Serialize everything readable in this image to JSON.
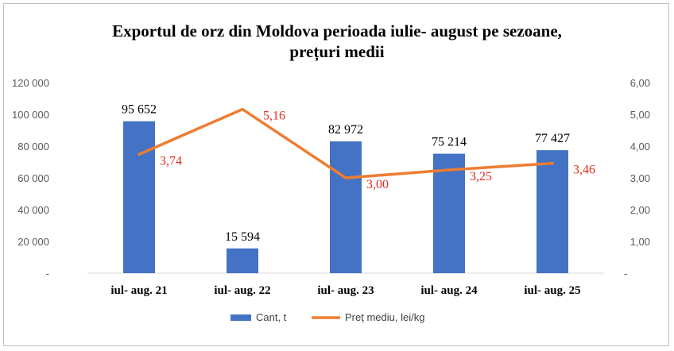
{
  "chart_data": {
    "type": "bar",
    "title_line1": "Exportul de orz  din Moldova perioada iulie- august pe sezoane,",
    "title_line2": "prețuri medii",
    "categories": [
      "iul- aug. 21",
      "iul- aug. 22",
      "iul- aug. 23",
      "iul- aug. 24",
      "iul- aug. 25"
    ],
    "series": [
      {
        "name": "Cant, t",
        "type": "bar",
        "axis": "left",
        "values": [
          95652,
          15594,
          82972,
          75214,
          77427
        ],
        "labels": [
          "95 652",
          "15 594",
          "82 972",
          "75 214",
          "77 427"
        ],
        "color": "#4472c4"
      },
      {
        "name": "Preț mediu, lei/kg",
        "type": "line",
        "axis": "right",
        "values": [
          3.74,
          5.16,
          3.0,
          3.25,
          3.46
        ],
        "labels": [
          "3,74",
          "5,16",
          "3,00",
          "3,25",
          "3,46"
        ],
        "color": "#ed7d31",
        "label_color": "#e02a1c"
      }
    ],
    "y_left": {
      "min": 0,
      "max": 120000,
      "ticks": [
        0,
        20000,
        40000,
        60000,
        80000,
        100000,
        120000
      ],
      "tick_labels": [
        "-",
        "20 000",
        "40 000",
        "60 000",
        "80 000",
        "100 000",
        "120 000"
      ]
    },
    "y_right": {
      "min": 0,
      "max": 6,
      "ticks": [
        0,
        1,
        2,
        3,
        4,
        5,
        6
      ],
      "tick_labels": [
        "-",
        "1,00",
        "2,00",
        "3,00",
        "4,00",
        "5,00",
        "6,00"
      ]
    },
    "grid": false,
    "legend_position": "bottom"
  }
}
